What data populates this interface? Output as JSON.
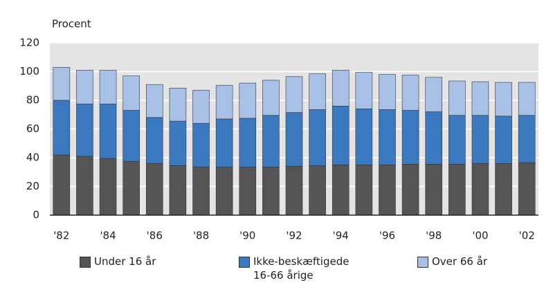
{
  "chart_data": {
    "type": "stacked-bar",
    "y_axis_label": "Procent",
    "categories": [
      "'82",
      null,
      "'84",
      null,
      "'86",
      null,
      "'88",
      null,
      "'90",
      null,
      "'92",
      null,
      "'94",
      null,
      "'96",
      null,
      "'98",
      null,
      "'00",
      null,
      "'02"
    ],
    "series": [
      {
        "name": "Under 16 år",
        "color": "#555555",
        "values": [
          42,
          41,
          39.5,
          37.5,
          36,
          34.5,
          33.5,
          33.5,
          33.5,
          33.5,
          34,
          34.5,
          35,
          35,
          35,
          35.5,
          35.5,
          35.5,
          36,
          36,
          36.5
        ]
      },
      {
        "name": "Ikke-beskæftigede\n16-66 årige",
        "color": "#3a78c0",
        "values": [
          38,
          36.5,
          38,
          35.5,
          32,
          31,
          30.5,
          33.5,
          34,
          36,
          37.5,
          39,
          41,
          39,
          38.5,
          37.5,
          36.5,
          34,
          33.5,
          33,
          33
        ]
      },
      {
        "name": "Over 66 år",
        "color": "#a9c0e6",
        "values": [
          23,
          23.5,
          23.5,
          24,
          23,
          23,
          23,
          23.5,
          24.5,
          24.5,
          25,
          25,
          25,
          25.5,
          24.5,
          24.5,
          24,
          24,
          23.5,
          23.5,
          23
        ]
      }
    ],
    "ylim": [
      0,
      120
    ],
    "yticks": [
      0,
      20,
      40,
      60,
      80,
      100,
      120
    ],
    "grid": true
  }
}
